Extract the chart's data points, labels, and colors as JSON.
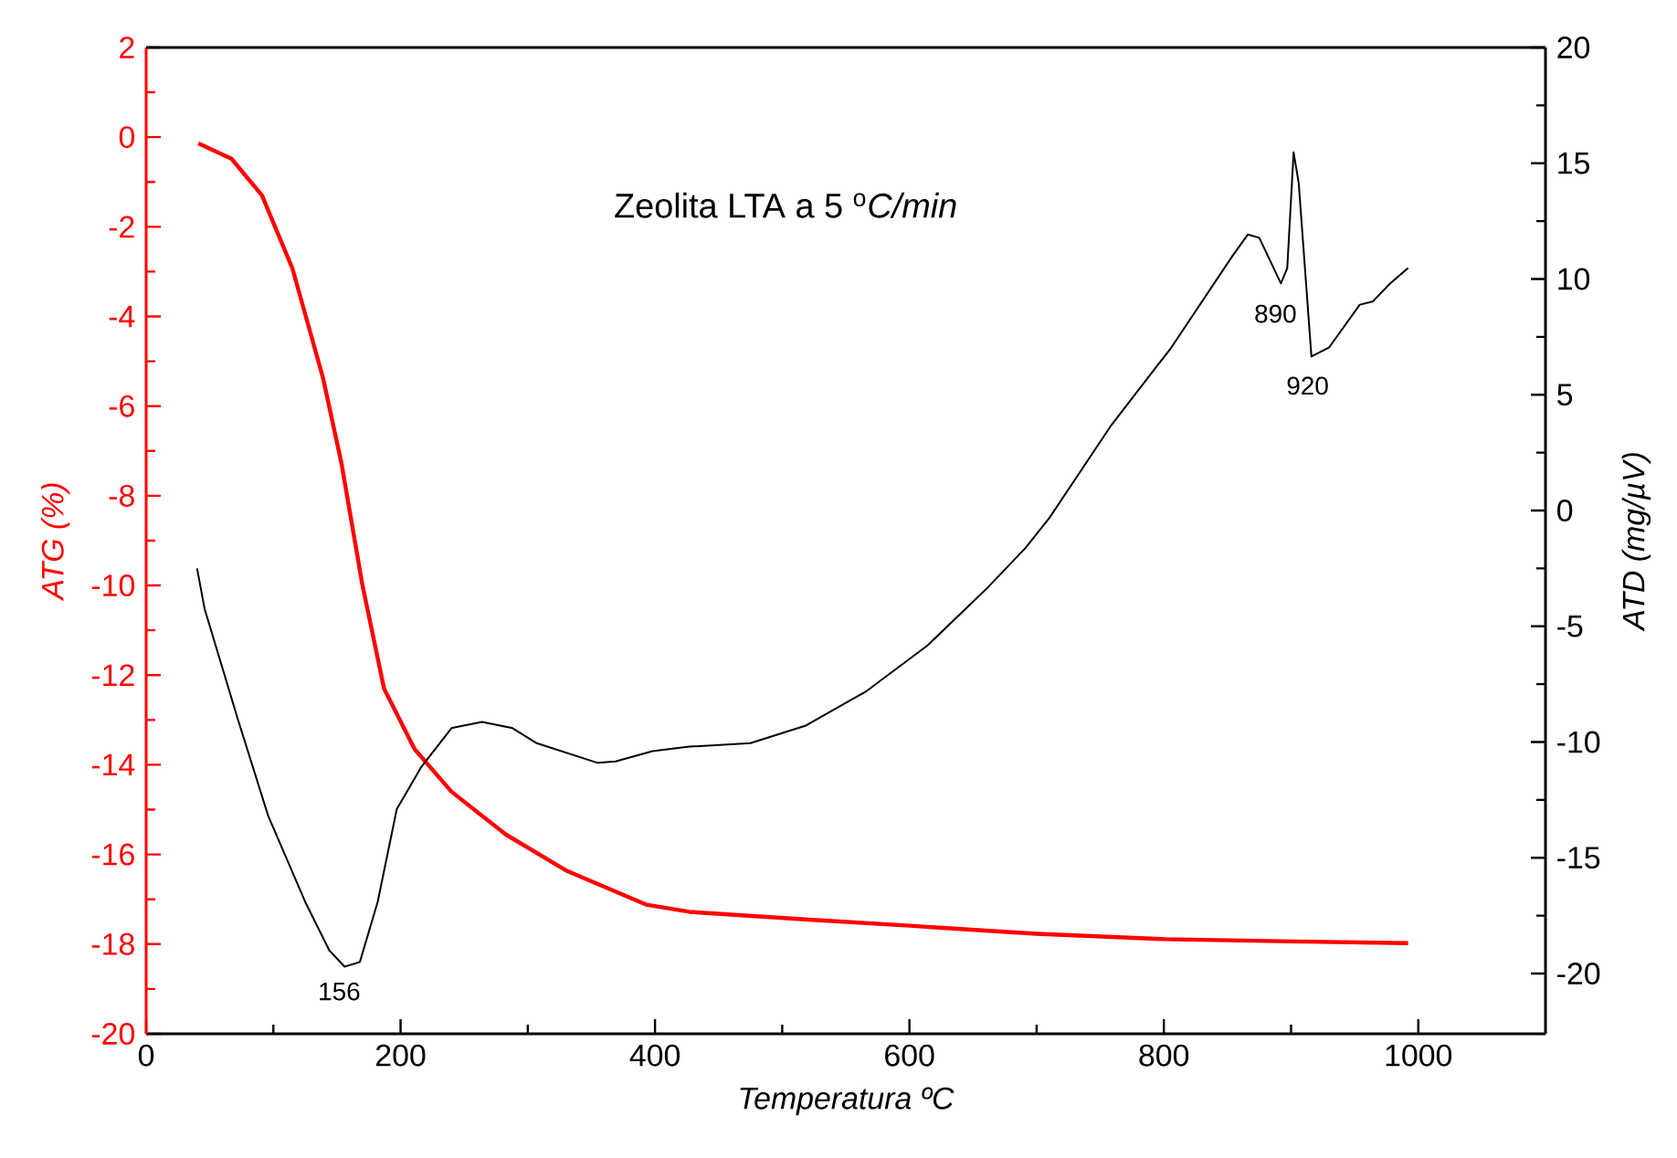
{
  "chart_data": {
    "type": "line",
    "title": "Zeolita LTA a 5 $^{o}$*C/min*",
    "xlabel": "Temperatura ºC",
    "ylabel": "ATG (%)",
    "y2label": "ATD (mg/µV)",
    "xlim": [
      0,
      1100
    ],
    "xticks": [
      0,
      200,
      400,
      600,
      800,
      1000
    ],
    "ylim": [
      -20,
      2
    ],
    "yticks": [
      -20,
      -18,
      -16,
      -14,
      -12,
      -10,
      -8,
      -6,
      -4,
      -2,
      0,
      2
    ],
    "y2lim": [
      -22.6,
      20
    ],
    "y2ticks": [
      -20,
      -15,
      -10,
      -5,
      0,
      5,
      10,
      15,
      20
    ],
    "series": [
      {
        "color": "#ff0000",
        "x": [
          41,
          67,
          91,
          115,
          139,
          153.5,
          170,
          187,
          211,
          240,
          283,
          331,
          393,
          427,
          518,
          600,
          700,
          801,
          902,
          992
        ],
        "values": [
          -0.14,
          -0.48,
          -1.3,
          -2.93,
          -5.37,
          -7.27,
          -9.99,
          -12.3,
          -13.65,
          -14.6,
          -15.56,
          -16.37,
          -17.12,
          -17.28,
          -17.45,
          -17.59,
          -17.77,
          -17.89,
          -17.94,
          -17.98
        ]
      },
      {
        "color": "#000000",
        "axis": "y2",
        "x": [
          40,
          46,
          72,
          96,
          125,
          144,
          156,
          168,
          182,
          197,
          216,
          240,
          264,
          288,
          307,
          355,
          369,
          398,
          427,
          475,
          518,
          566,
          614,
          662,
          691,
          710,
          758,
          806,
          854,
          866,
          875,
          892,
          897,
          902,
          906,
          916,
          930,
          954,
          964,
          978,
          992
        ],
        "values": [
          -2.5,
          -4.26,
          -9.0,
          -13.2,
          -16.9,
          -19.0,
          -19.7,
          -19.5,
          -16.9,
          -12.9,
          -11.1,
          -9.4,
          -9.13,
          -9.4,
          -10.05,
          -10.9,
          -10.84,
          -10.39,
          -10.2,
          -10.05,
          -9.3,
          -7.81,
          -5.84,
          -3.3,
          -1.63,
          -0.32,
          3.63,
          7.05,
          11.0,
          11.92,
          11.78,
          9.81,
          10.47,
          15.47,
          14.15,
          6.65,
          7.05,
          8.89,
          9.02,
          9.81,
          10.47
        ]
      }
    ],
    "annotations": [
      "156",
      "890",
      "920"
    ]
  }
}
